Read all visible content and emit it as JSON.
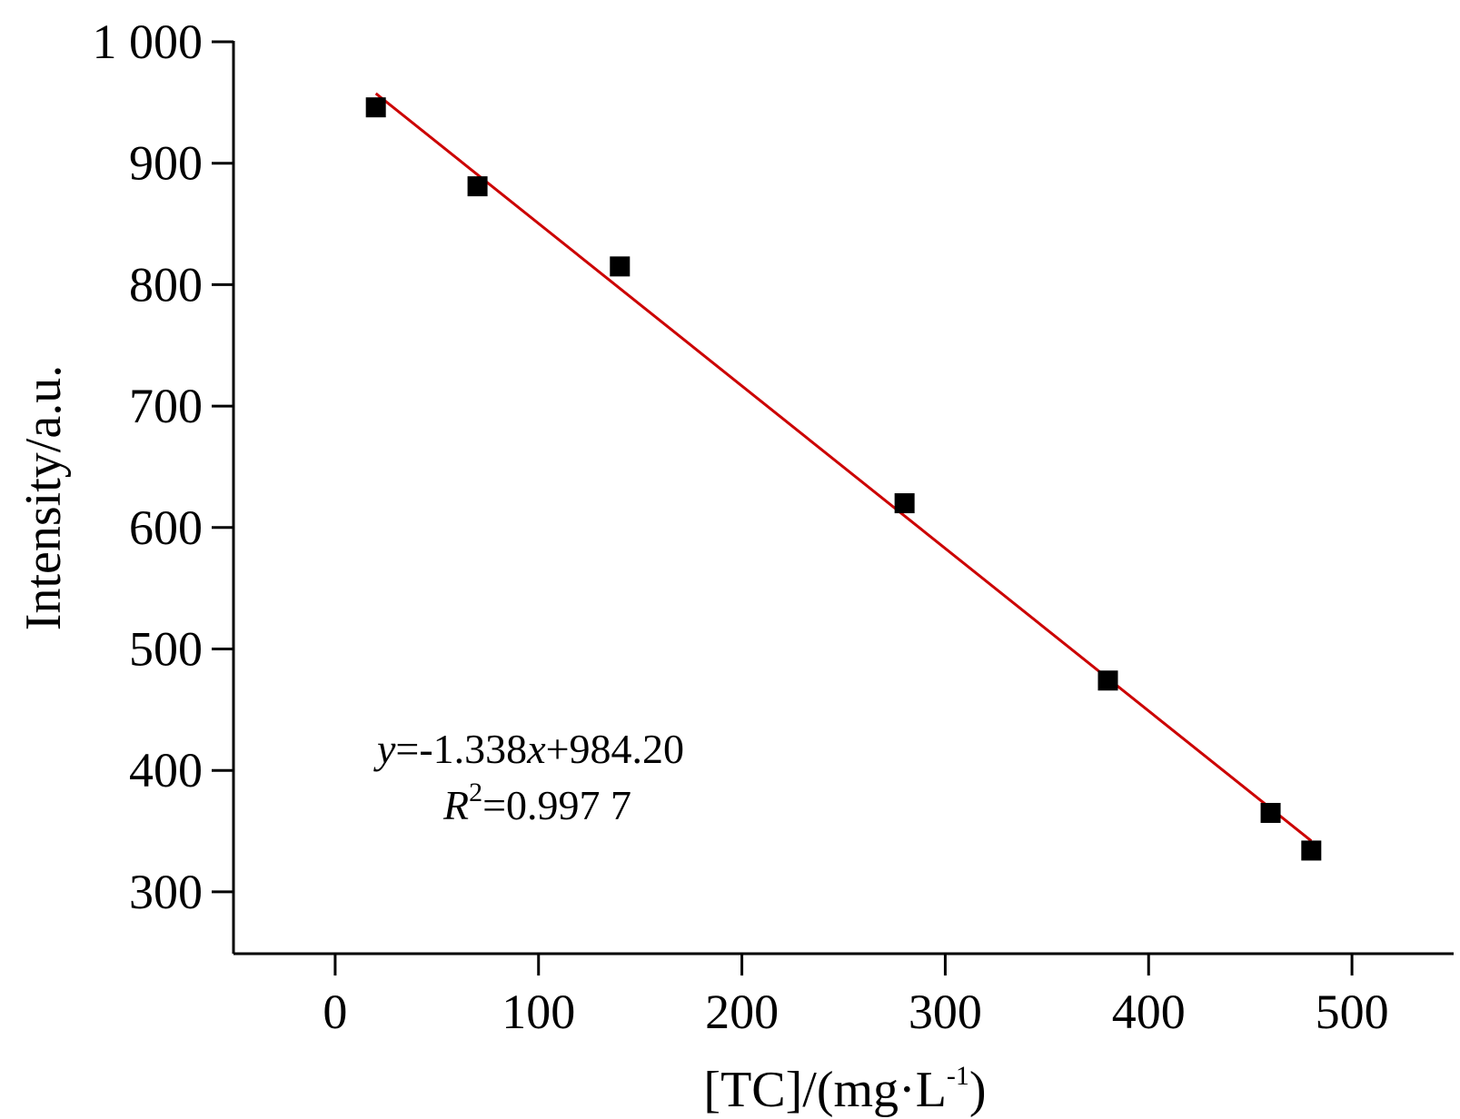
{
  "chart_data": {
    "type": "scatter",
    "xlabel_main": "[TC]/(mg·L",
    "xlabel_sup": "-1",
    "xlabel_end": ")",
    "ylabel": "Intensity/a.u.",
    "xlim": [
      -50,
      550
    ],
    "ylim": [
      250,
      1000
    ],
    "x_ticks": [
      0,
      100,
      200,
      300,
      400,
      500
    ],
    "x_tick_labels": [
      "0",
      "100",
      "200",
      "300",
      "400",
      "500"
    ],
    "y_ticks": [
      300,
      400,
      500,
      600,
      700,
      800,
      900,
      1000
    ],
    "y_tick_labels": [
      "300",
      "400",
      "500",
      "600",
      "700",
      "800",
      "900",
      "1 000"
    ],
    "grid": false,
    "points": [
      {
        "x": 20,
        "y": 946
      },
      {
        "x": 70,
        "y": 881
      },
      {
        "x": 140,
        "y": 815
      },
      {
        "x": 280,
        "y": 620
      },
      {
        "x": 380,
        "y": 474
      },
      {
        "x": 460,
        "y": 365
      },
      {
        "x": 480,
        "y": 334
      }
    ],
    "fit": {
      "slope": -1.338,
      "intercept": 984.2,
      "x_start": 20,
      "x_end": 480
    },
    "marker_color": "#000000",
    "fit_color": "#cc0000",
    "equation": {
      "y": "y",
      "eq": "=-1.338",
      "x": "x",
      "rest": "+984.20"
    },
    "r2": {
      "R": "R",
      "sup": "2",
      "rest": "=0.997 7"
    }
  }
}
